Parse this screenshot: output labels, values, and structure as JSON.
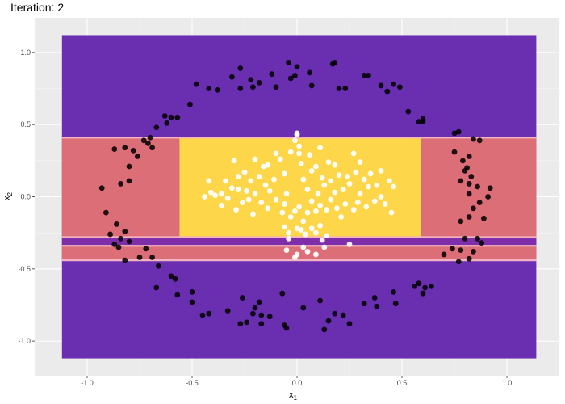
{
  "chart_data": {
    "type": "scatter",
    "title": "Iteration: 2",
    "xlabel": "x",
    "xlabel_sub": "1",
    "ylabel": "x",
    "ylabel_sub": "2",
    "xlim": [
      -1.25,
      1.25
    ],
    "ylim": [
      -1.24,
      1.24
    ],
    "x_ticks": [
      -1.0,
      -0.5,
      0.0,
      0.5,
      1.0
    ],
    "x_tick_labels": [
      "-1.0",
      "-0.5",
      "0.0",
      "0.5",
      "1.0"
    ],
    "y_ticks": [
      -1.0,
      -0.5,
      0.0,
      0.5,
      1.0
    ],
    "y_tick_labels": [
      "-1.0",
      "-0.5",
      "0.0",
      "0.5",
      "1.0"
    ],
    "grid": true,
    "legend": "none",
    "colors": {
      "panel": "#ebebeb",
      "grid_major": "#ffffff",
      "region_low": "#6a2fb0",
      "region_mid": "#dc6e78",
      "region_high": "#fdd64a",
      "boundary": "#f3b3c0",
      "outer_points": "#000000",
      "inner_points": "#ffffff"
    },
    "regions": [
      {
        "label": "low",
        "xmin": -1.12,
        "xmax": 1.14,
        "ymin": -1.12,
        "ymax": 1.12,
        "color": "#6a2fb0"
      },
      {
        "label": "mid",
        "xmin": -1.12,
        "xmax": 1.14,
        "ymin": -0.28,
        "ymax": 0.41,
        "color": "#dc6e78"
      },
      {
        "label": "high",
        "xmin": -0.56,
        "xmax": 0.59,
        "ymin": -0.28,
        "ymax": 0.41,
        "color": "#fdd64a"
      },
      {
        "label": "low",
        "xmin": -1.12,
        "xmax": 1.14,
        "ymin": -0.34,
        "ymax": -0.28,
        "color": "#7e2ea8"
      },
      {
        "label": "mid",
        "xmin": -1.12,
        "xmax": 1.14,
        "ymin": -0.44,
        "ymax": -0.34,
        "color": "#dc6e78"
      }
    ],
    "boundaries_y": [
      0.41,
      -0.28,
      -0.34,
      -0.44
    ],
    "series": [
      {
        "name": "",
        "class": "outer",
        "color": "#000000",
        "points": [
          [
            -0.48,
            0.78
          ],
          [
            -0.42,
            0.75
          ],
          [
            -0.38,
            0.74
          ],
          [
            -0.31,
            0.83
          ],
          [
            -0.27,
            0.75
          ],
          [
            -0.21,
            0.76
          ],
          [
            -0.18,
            0.79
          ],
          [
            -0.1,
            0.76
          ],
          [
            -0.03,
            0.82
          ],
          [
            -0.01,
            0.84
          ],
          [
            -0.27,
            0.89
          ],
          [
            -0.22,
            0.81
          ],
          [
            -0.12,
            0.85
          ],
          [
            -0.04,
            0.93
          ],
          [
            0.0,
            0.9
          ],
          [
            0.06,
            0.86
          ],
          [
            0.07,
            0.77
          ],
          [
            0.17,
            0.92
          ],
          [
            0.2,
            0.75
          ],
          [
            0.23,
            0.75
          ],
          [
            0.32,
            0.84
          ],
          [
            0.34,
            0.84
          ],
          [
            0.4,
            0.77
          ],
          [
            0.43,
            0.73
          ],
          [
            0.46,
            0.78
          ],
          [
            0.49,
            0.76
          ],
          [
            0.53,
            0.59
          ],
          [
            0.58,
            0.52
          ],
          [
            0.6,
            0.54
          ],
          [
            0.6,
            0.52
          ],
          [
            0.18,
            0.93
          ],
          [
            -0.63,
            0.56
          ],
          [
            -0.6,
            0.55
          ],
          [
            -0.57,
            0.55
          ],
          [
            -0.51,
            0.64
          ],
          [
            -0.67,
            0.48
          ],
          [
            -0.62,
            0.51
          ],
          [
            -0.7,
            0.41
          ],
          [
            -0.71,
            0.37
          ],
          [
            -0.69,
            0.34
          ],
          [
            -0.73,
            0.39
          ],
          [
            -0.78,
            0.32
          ],
          [
            -0.82,
            0.34
          ],
          [
            -0.87,
            0.33
          ],
          [
            -0.93,
            0.06
          ],
          [
            -0.91,
            -0.11
          ],
          [
            -0.86,
            -0.19
          ],
          [
            -0.84,
            0.09
          ],
          [
            -0.8,
            0.11
          ],
          [
            -0.76,
            0.28
          ],
          [
            -0.8,
            0.21
          ],
          [
            -0.89,
            -0.26
          ],
          [
            -0.87,
            -0.33
          ],
          [
            -0.85,
            -0.35
          ],
          [
            -0.84,
            -0.29
          ],
          [
            -0.82,
            -0.24
          ],
          [
            -0.8,
            -0.31
          ],
          [
            -0.82,
            -0.44
          ],
          [
            -0.75,
            -0.42
          ],
          [
            -0.72,
            -0.36
          ],
          [
            -0.69,
            -0.42
          ],
          [
            -0.66,
            -0.48
          ],
          [
            -0.67,
            -0.63
          ],
          [
            -0.6,
            -0.55
          ],
          [
            -0.58,
            -0.57
          ],
          [
            -0.57,
            -0.68
          ],
          [
            -0.5,
            -0.66
          ],
          [
            -0.5,
            -0.73
          ],
          [
            -0.45,
            -0.82
          ],
          [
            -0.42,
            -0.81
          ],
          [
            -0.33,
            -0.79
          ],
          [
            -0.27,
            -0.88
          ],
          [
            -0.26,
            -0.7
          ],
          [
            -0.24,
            -0.87
          ],
          [
            -0.21,
            -0.81
          ],
          [
            -0.2,
            -0.77
          ],
          [
            -0.18,
            -0.73
          ],
          [
            -0.17,
            -0.88
          ],
          [
            -0.13,
            -0.83
          ],
          [
            -0.07,
            -0.67
          ],
          [
            -0.06,
            -0.89
          ],
          [
            -0.05,
            -0.91
          ],
          [
            0.03,
            -0.77
          ],
          [
            -0.17,
            -0.82
          ],
          [
            0.11,
            -0.72
          ],
          [
            0.13,
            -0.92
          ],
          [
            0.15,
            -0.86
          ],
          [
            0.18,
            -0.81
          ],
          [
            0.22,
            -0.82
          ],
          [
            0.25,
            -0.88
          ],
          [
            0.32,
            -0.74
          ],
          [
            0.37,
            -0.7
          ],
          [
            0.38,
            -0.76
          ],
          [
            0.46,
            -0.66
          ],
          [
            0.47,
            -0.74
          ],
          [
            0.56,
            -0.62
          ],
          [
            0.58,
            -0.6
          ],
          [
            0.61,
            -0.63
          ],
          [
            0.64,
            -0.62
          ],
          [
            0.6,
            -0.67
          ],
          [
            0.7,
            -0.4
          ],
          [
            0.74,
            -0.36
          ],
          [
            0.77,
            -0.45
          ],
          [
            0.82,
            -0.43
          ],
          [
            0.78,
            -0.37
          ],
          [
            0.84,
            -0.38
          ],
          [
            0.88,
            -0.32
          ],
          [
            0.86,
            -0.29
          ],
          [
            0.8,
            -0.29
          ],
          [
            0.78,
            -0.17
          ],
          [
            0.82,
            -0.14
          ],
          [
            0.84,
            -0.08
          ],
          [
            0.82,
            0.02
          ],
          [
            0.87,
            -0.04
          ],
          [
            0.91,
            0.0
          ],
          [
            0.92,
            0.06
          ],
          [
            0.86,
            0.07
          ],
          [
            0.82,
            0.09
          ],
          [
            0.83,
            0.14
          ],
          [
            0.78,
            0.11
          ],
          [
            0.8,
            0.18
          ],
          [
            0.79,
            0.25
          ],
          [
            0.82,
            0.28
          ],
          [
            0.75,
            0.31
          ],
          [
            0.75,
            0.44
          ],
          [
            0.77,
            0.45
          ],
          [
            0.87,
            0.39
          ],
          [
            0.84,
            0.4
          ],
          [
            0.81,
            0.2
          ],
          [
            0.89,
            -0.15
          ]
        ]
      },
      {
        "name": "",
        "class": "inner",
        "color": "#ffffff",
        "points": [
          [
            -0.42,
            0.11
          ],
          [
            -0.39,
            0.01
          ],
          [
            -0.41,
            0.03
          ],
          [
            -0.31,
            0.06
          ],
          [
            -0.34,
            0.11
          ],
          [
            -0.28,
            0.05
          ],
          [
            -0.3,
            0.25
          ],
          [
            -0.25,
            0.17
          ],
          [
            -0.24,
            0.04
          ],
          [
            -0.22,
            0.11
          ],
          [
            -0.2,
            0.02
          ],
          [
            -0.18,
            0.14
          ],
          [
            -0.15,
            0.08
          ],
          [
            -0.16,
            0.21
          ],
          [
            -0.13,
            0.04
          ],
          [
            -0.11,
            0.12
          ],
          [
            -0.08,
            0.26
          ],
          [
            -0.06,
            0.16
          ],
          [
            -0.05,
            0.02
          ],
          [
            -0.03,
            0.31
          ],
          [
            -0.01,
            0.39
          ],
          [
            0.0,
            0.43
          ],
          [
            0.0,
            0.44
          ],
          [
            0.01,
            0.35
          ],
          [
            0.02,
            0.23
          ],
          [
            0.03,
            0.12
          ],
          [
            0.05,
            0.05
          ],
          [
            0.06,
            0.29
          ],
          [
            0.07,
            0.18
          ],
          [
            0.09,
            0.21
          ],
          [
            0.1,
            0.02
          ],
          [
            0.12,
            0.13
          ],
          [
            0.13,
            0.08
          ],
          [
            0.15,
            0.24
          ],
          [
            0.16,
            0.11
          ],
          [
            0.18,
            0.03
          ],
          [
            0.2,
            0.15
          ],
          [
            0.22,
            0.05
          ],
          [
            0.25,
            0.09
          ],
          [
            0.27,
            0.3
          ],
          [
            0.28,
            0.17
          ],
          [
            0.3,
            0.02
          ],
          [
            0.32,
            0.12
          ],
          [
            0.34,
            0.07
          ],
          [
            0.38,
            0.08
          ],
          [
            0.4,
            0.0
          ],
          [
            0.44,
            0.11
          ],
          [
            0.46,
            0.07
          ],
          [
            -0.44,
            0.0
          ],
          [
            -0.36,
            -0.06
          ],
          [
            -0.33,
            -0.01
          ],
          [
            -0.29,
            -0.09
          ],
          [
            -0.26,
            -0.04
          ],
          [
            -0.23,
            -0.02
          ],
          [
            -0.21,
            -0.12
          ],
          [
            -0.17,
            -0.04
          ],
          [
            -0.14,
            -0.08
          ],
          [
            -0.1,
            -0.02
          ],
          [
            -0.07,
            -0.11
          ],
          [
            -0.06,
            -0.05
          ],
          [
            -0.03,
            -0.14
          ],
          [
            -0.01,
            -0.1
          ],
          [
            0.01,
            -0.07
          ],
          [
            0.03,
            -0.17
          ],
          [
            0.05,
            -0.11
          ],
          [
            0.07,
            -0.03
          ],
          [
            0.09,
            -0.1
          ],
          [
            0.11,
            -0.06
          ],
          [
            0.14,
            -0.09
          ],
          [
            0.16,
            -0.02
          ],
          [
            0.19,
            -0.08
          ],
          [
            0.21,
            -0.14
          ],
          [
            0.23,
            -0.05
          ],
          [
            0.27,
            -0.09
          ],
          [
            0.29,
            -0.04
          ],
          [
            0.33,
            -0.07
          ],
          [
            0.37,
            -0.03
          ],
          [
            0.42,
            -0.05
          ],
          [
            0.45,
            -0.11
          ],
          [
            -0.04,
            -0.25
          ],
          [
            -0.06,
            -0.21
          ],
          [
            -0.04,
            -0.29
          ],
          [
            0.0,
            -0.22
          ],
          [
            0.02,
            -0.23
          ],
          [
            0.04,
            -0.26
          ],
          [
            0.07,
            -0.22
          ],
          [
            0.09,
            -0.25
          ],
          [
            0.12,
            -0.3
          ],
          [
            0.14,
            -0.27
          ],
          [
            0.11,
            -0.2
          ],
          [
            -0.01,
            -0.42
          ],
          [
            0.0,
            -0.4
          ],
          [
            0.03,
            -0.35
          ],
          [
            0.05,
            -0.38
          ],
          [
            0.09,
            -0.4
          ],
          [
            0.13,
            -0.35
          ],
          [
            0.25,
            -0.33
          ],
          [
            -0.05,
            -0.37
          ],
          [
            -0.14,
            0.22
          ],
          [
            -0.28,
            0.14
          ],
          [
            0.18,
            0.22
          ],
          [
            0.24,
            0.14
          ],
          [
            -0.1,
            0.3
          ],
          [
            0.11,
            0.34
          ],
          [
            0.01,
            0.3
          ],
          [
            -0.2,
            0.26
          ],
          [
            0.3,
            0.24
          ],
          [
            0.35,
            0.16
          ],
          [
            -0.36,
            0.02
          ],
          [
            0.4,
            0.18
          ]
        ]
      }
    ]
  }
}
